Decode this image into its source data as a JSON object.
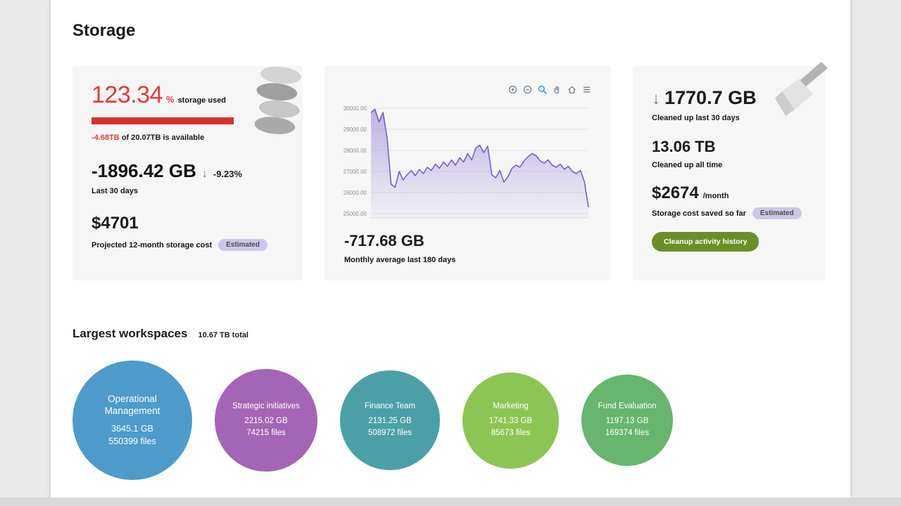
{
  "page": {
    "title": "Storage"
  },
  "usage_card": {
    "percent": "123.34",
    "percent_unit": "%",
    "percent_label": "storage used",
    "available_value": "-4.68TB",
    "available_text": "of 20.07TB is available",
    "delta_value": "-1896.42 GB",
    "delta_arrow": "↓",
    "delta_percent": "-9.23%",
    "delta_caption": "Last 30 days",
    "cost_value": "$4701",
    "cost_caption": "Projected 12-month storage cost",
    "badge_label": "Estimated"
  },
  "chart_card": {
    "summary_value": "-717.68 GB",
    "summary_caption": "Monthly average last 180 days",
    "toolbar_icons": [
      "zoom-in",
      "zoom-out",
      "selection-zoom",
      "pan",
      "home",
      "menu"
    ]
  },
  "cleanup_card": {
    "arrow": "↓",
    "recent_value": "1770.7 GB",
    "recent_caption": "Cleaned up last 30 days",
    "alltime_value": "13.06 TB",
    "alltime_caption": "Cleaned up all time",
    "saved_value": "$2674",
    "saved_unit": "/month",
    "saved_caption": "Storage cost saved so far",
    "badge_label": "Estimated",
    "button_label": "Cleanup activity history"
  },
  "workspaces": {
    "title": "Largest workspaces",
    "total_label": "10.67 TB total",
    "items": [
      {
        "name": "Operational Management",
        "size": "3645.1 GB",
        "files": "550399 files",
        "color": "#4d9bca",
        "diameter": 170
      },
      {
        "name": "Strategic initiatives",
        "size": "2215.02 GB",
        "files": "74215 files",
        "color": "#a565b6",
        "diameter": 146
      },
      {
        "name": "Finance Team",
        "size": "2131.25 GB",
        "files": "508972 files",
        "color": "#4ba0a8",
        "diameter": 142
      },
      {
        "name": "Marketing",
        "size": "1741.33 GB",
        "files": "85673 files",
        "color": "#8dc554",
        "diameter": 137
      },
      {
        "name": "Fund Evaluation",
        "size": "1197.13 GB",
        "files": "169374 files",
        "color": "#67b56f",
        "diameter": 130
      }
    ]
  },
  "chart_data": {
    "type": "area",
    "title": "",
    "xlabel": "",
    "ylabel": "",
    "x_range_note": "last 180 days",
    "ylim": [
      24800,
      30200
    ],
    "yticks": [
      25000,
      26000,
      27000,
      28000,
      29000,
      30000
    ],
    "ytick_labels": [
      "25000.00",
      "26000.00",
      "27000.00",
      "28000.00",
      "29000.00",
      "30000.00"
    ],
    "grid": true,
    "legend": false,
    "line_color": "#775dd0",
    "fill_color": "#775dd0",
    "values": [
      29800,
      29950,
      29350,
      29800,
      28600,
      26400,
      26250,
      27000,
      26600,
      26850,
      27050,
      26800,
      27100,
      26900,
      27200,
      27050,
      27350,
      27150,
      27450,
      27250,
      27550,
      27300,
      27650,
      27450,
      27850,
      27550,
      28100,
      28250,
      27900,
      28200,
      26850,
      26700,
      27050,
      26500,
      26750,
      27150,
      27300,
      27200,
      27500,
      27700,
      27850,
      27750,
      27500,
      27400,
      27550,
      27300,
      27200,
      27350,
      27100,
      27250,
      27000,
      26900,
      27050,
      26500,
      25300
    ]
  },
  "colors": {
    "accent_red": "#e53935",
    "accent_green": "#43a047",
    "badge_bg": "#cdc6ea",
    "button_bg": "#6d8e26",
    "card_bg": "#f6f6f6"
  }
}
